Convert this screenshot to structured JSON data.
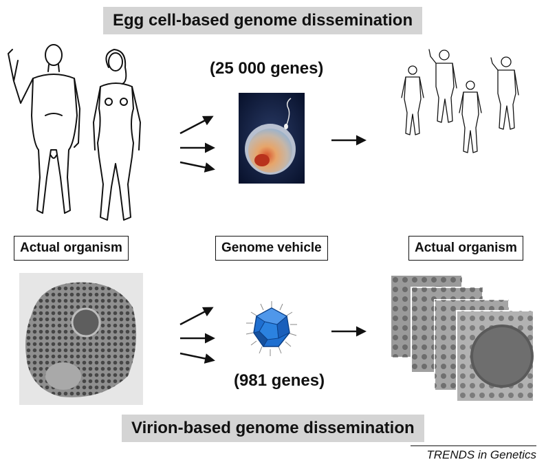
{
  "top_section": {
    "title": "Egg cell-based genome dissemination",
    "gene_count": "(25 000 genes)"
  },
  "labels": {
    "left": "Actual organism",
    "middle": "Genome vehicle",
    "right": "Actual organism"
  },
  "bottom_section": {
    "title": "Virion-based genome dissemination",
    "gene_count": "(981 genes)"
  },
  "credit": "TRENDS in Genetics",
  "colors": {
    "banner_bg": "#d4d4d4",
    "egg_background": "#0d1a3a",
    "virion_blue": "#1f6fd0",
    "cell_gray": "#8a8a8a"
  }
}
